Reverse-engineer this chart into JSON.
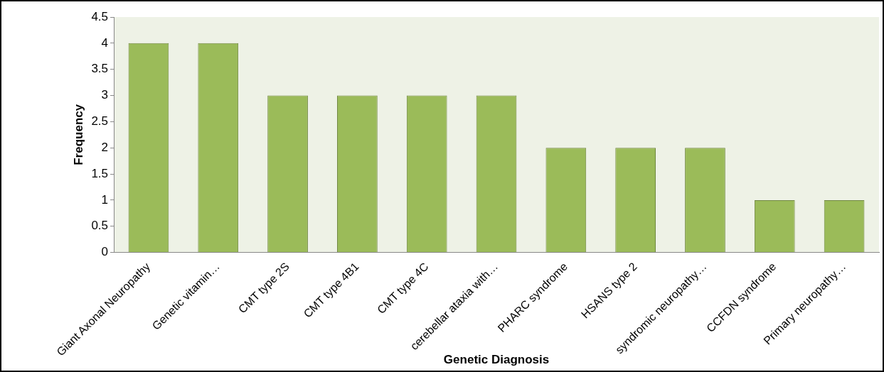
{
  "chart_data": {
    "type": "bar",
    "xlabel": "Genetic Diagnosis",
    "ylabel": "Frequency",
    "categories": [
      "Giant Axonal Neuropathy",
      "Genetic vitamin…",
      "CMT type 2S",
      "CMT type 4B1",
      "CMT type 4C",
      "cerebellar ataxia with…",
      "PHARC syndrome",
      "HSANS type 2",
      "syndromic neuropathy…",
      "CCFDN syndrome",
      "Primary neuropathy…"
    ],
    "values": [
      4,
      4,
      3,
      3,
      3,
      3,
      2,
      2,
      2,
      1,
      1
    ],
    "color": "#9bbb59",
    "ylim": [
      0,
      4.5
    ],
    "yticks": [
      0,
      0.5,
      1,
      1.5,
      2,
      2.5,
      3,
      3.5,
      4,
      4.5
    ],
    "grid": false,
    "legend": false
  }
}
